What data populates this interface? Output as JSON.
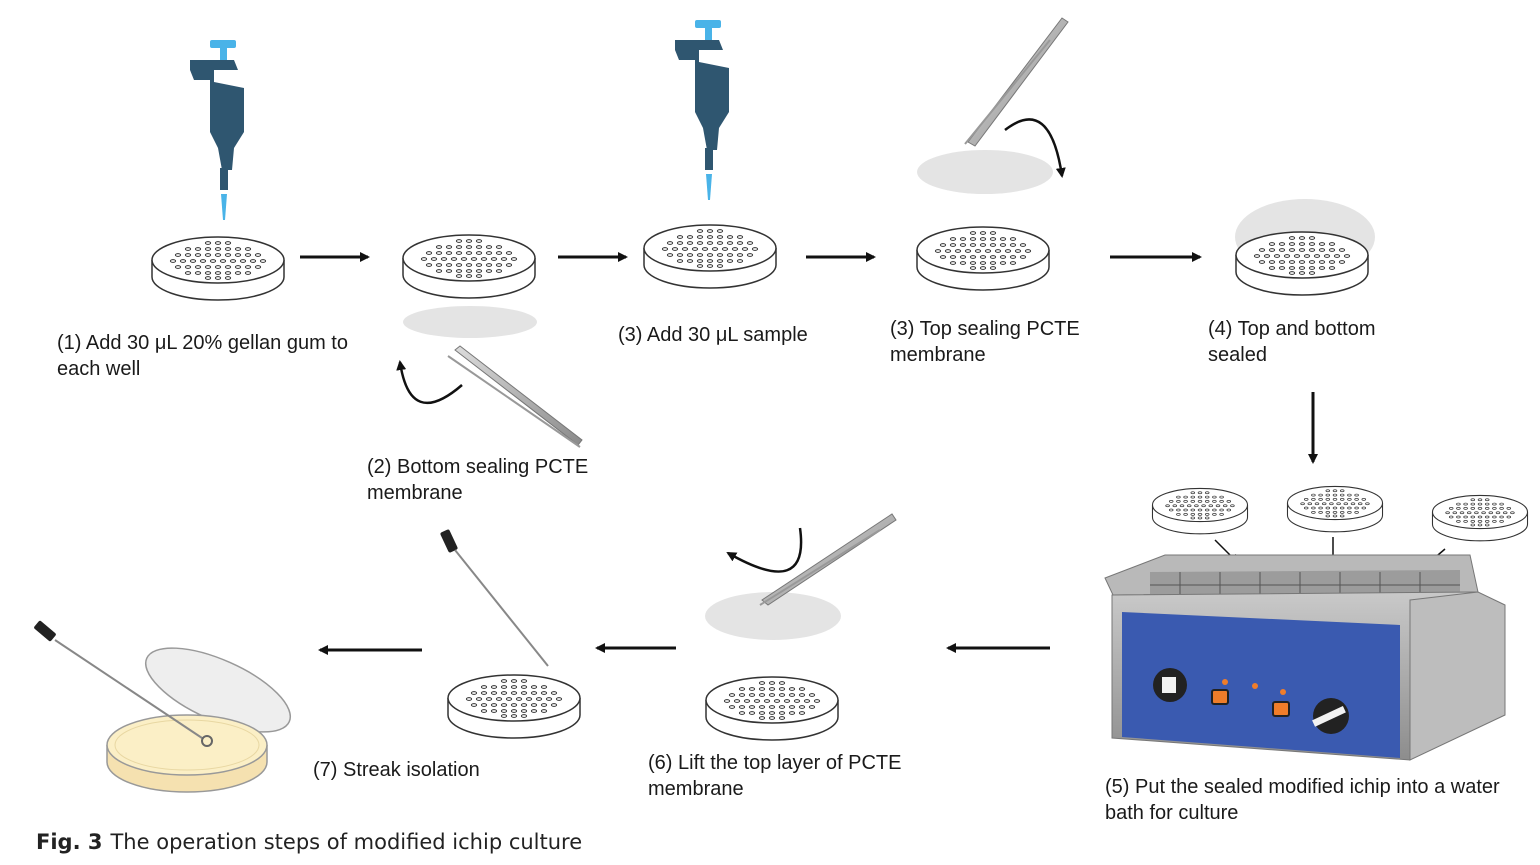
{
  "steps": {
    "s1": {
      "line1": "(1) Add 30 μL 20% gellan gum to",
      "line2": "each well"
    },
    "s2": {
      "line1": "(2) Bottom sealing PCTE",
      "line2": "membrane"
    },
    "s3a": {
      "line1": "(3) Add 30 μL sample"
    },
    "s3b": {
      "line1": "(3) Top sealing PCTE",
      "line2": "membrane"
    },
    "s4": {
      "line1": "(4) Top and bottom",
      "line2": "sealed"
    },
    "s5": {
      "line1": "(5) Put the sealed modified ichip into a water",
      "line2": "bath for culture"
    },
    "s6": {
      "line1": "(6) Lift the top layer of PCTE",
      "line2": "membrane"
    },
    "s7": {
      "line1": "(7) Streak isolation"
    }
  },
  "caption": {
    "fig_label": "Fig. 3",
    "text": "The operation steps of modified ichip culture"
  },
  "colors": {
    "pipette": "#2f5670",
    "tip": "#49b3e8",
    "membrane": "#e4e4e4",
    "panel": "#3a5ab0",
    "knob_orange": "#f07d2a",
    "agar": "#fbefc6"
  },
  "icons": [
    "pipette-icon",
    "tweezers-icon",
    "ichip-disc-icon",
    "membrane-icon",
    "water-bath-icon",
    "petri-dish-icon",
    "inoculation-loop-icon",
    "arrow-icon"
  ]
}
